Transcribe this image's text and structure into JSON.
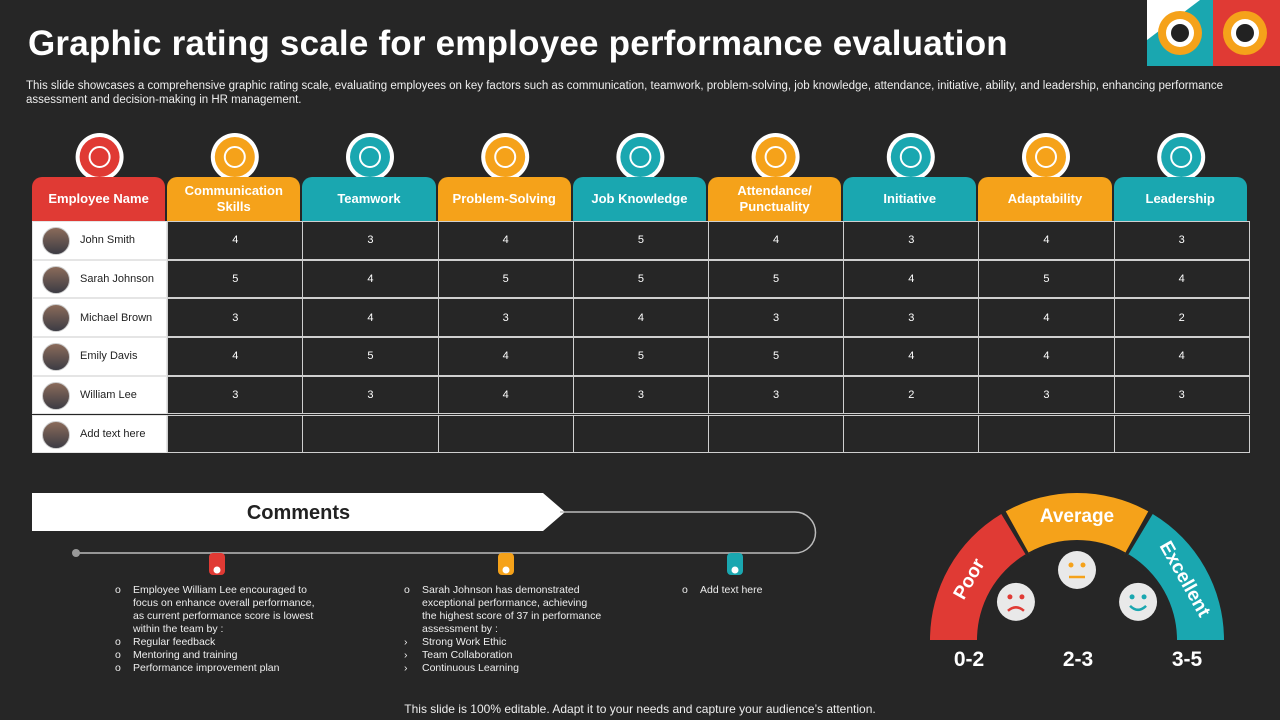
{
  "header": {
    "title": "Graphic rating scale for employee performance evaluation",
    "subtitle": "This slide showcases a comprehensive graphic rating scale, evaluating employees on key factors such as communication, teamwork, problem-solving, job knowledge, attendance, initiative, ability, and leadership, enhancing performance assessment and decision-making in HR management."
  },
  "table": {
    "columns": [
      "Employee Name",
      "Communication Skills",
      "Teamwork",
      "Problem-Solving",
      "Job Knowledge",
      "Attendance/ Punctuality",
      "Initiative",
      "Adaptability",
      "Leadership"
    ],
    "rows": [
      {
        "name": "John Smith",
        "scores": [
          4,
          3,
          4,
          5,
          4,
          3,
          4,
          3
        ]
      },
      {
        "name": "Sarah Johnson",
        "scores": [
          5,
          4,
          5,
          5,
          5,
          4,
          5,
          4
        ]
      },
      {
        "name": "Michael Brown",
        "scores": [
          3,
          4,
          3,
          4,
          3,
          3,
          4,
          2
        ]
      },
      {
        "name": "Emily Davis",
        "scores": [
          4,
          5,
          4,
          5,
          5,
          4,
          4,
          4
        ]
      },
      {
        "name": "William Lee",
        "scores": [
          3,
          3,
          4,
          3,
          3,
          2,
          3,
          3
        ]
      },
      {
        "name": "Add text here"
      }
    ]
  },
  "comments": {
    "title": "Comments",
    "items": [
      {
        "text": "Employee William Lee encouraged to focus on enhance overall performance, as current performance score is lowest within the team by :",
        "points": [
          "Regular feedback",
          "Mentoring and training",
          "Performance improvement plan"
        ]
      },
      {
        "text": "Sarah Johnson has demonstrated exceptional performance, achieving the highest score of 37 in performance assessment by :",
        "points": [
          "Strong Work Ethic",
          "Team Collaboration",
          "Continuous Learning"
        ]
      },
      {
        "text": "Add text here"
      }
    ]
  },
  "gauge": {
    "segments": [
      {
        "label": "Poor",
        "range": "0-2"
      },
      {
        "label": "Average",
        "range": "2-3"
      },
      {
        "label": "Excellent",
        "range": "3-5"
      }
    ]
  },
  "footer": "This slide is 100% editable. Adapt it to your needs and capture your audience’s attention."
}
